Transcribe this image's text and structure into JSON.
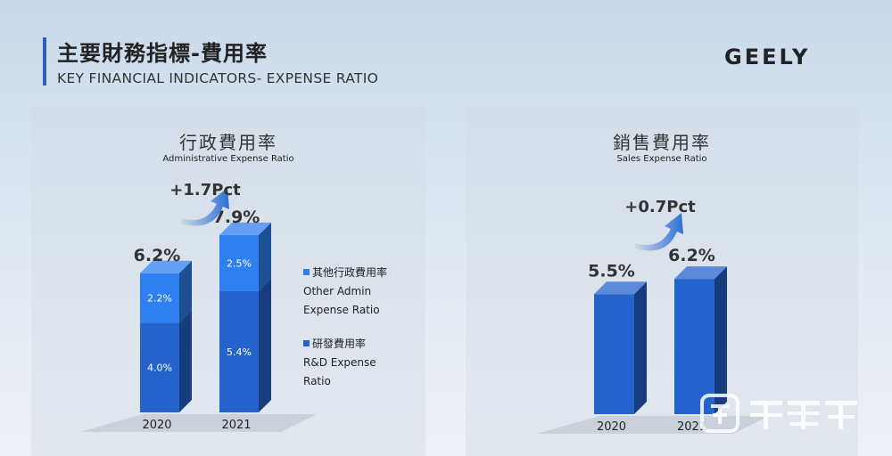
{
  "header": {
    "title_zh": "主要財務指標-費用率",
    "title_en": "KEY FINANCIAL INDICATORS- EXPENSE RATIO",
    "logo": "GEELY"
  },
  "watermark": {
    "text": "钛媒体"
  },
  "chart_data": [
    {
      "type": "bar",
      "stacked": true,
      "title": "行政費用率",
      "subtitle": "Administrative Expense Ratio",
      "categories": [
        "2020",
        "2021"
      ],
      "series": [
        {
          "name": "研發費用率 R&D Expense Ratio",
          "values": [
            4.0,
            5.4
          ],
          "labels": [
            "4.0%",
            "5.4%"
          ],
          "color": "#2563cc"
        },
        {
          "name": "其他行政費用率 Other Admin Expense Ratio",
          "values": [
            2.2,
            2.5
          ],
          "labels": [
            "2.2%",
            "2.5%"
          ],
          "color": "#2f7ff0"
        }
      ],
      "totals": [
        "6.2%",
        "7.9%"
      ],
      "change": "+1.7Pct",
      "legend": [
        {
          "zh": "其他行政費用率",
          "en1": "Other Admin",
          "en2": "Expense Ratio",
          "color": "#2f7ff0"
        },
        {
          "zh": "研發費用率",
          "en1": "R&D Expense",
          "en2": "Ratio",
          "color": "#2563cc"
        }
      ],
      "legend_position": "right",
      "ylim": [
        0,
        8
      ]
    },
    {
      "type": "bar",
      "title": "銷售費用率",
      "subtitle": "Sales Expense Ratio",
      "categories": [
        "2020",
        "2021"
      ],
      "values": [
        5.5,
        6.2
      ],
      "labels": [
        "5.5%",
        "6.2%"
      ],
      "color": "#2563cc",
      "change": "+0.7Pct",
      "ylim": [
        0,
        8
      ]
    }
  ]
}
